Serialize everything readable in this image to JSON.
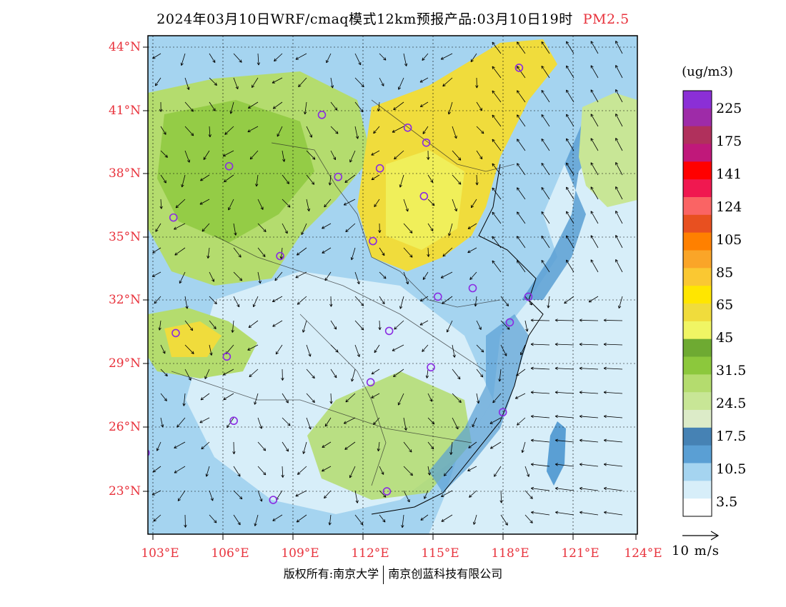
{
  "title": {
    "main": "2024年03月10日WRF/cmaq模式12km预报产品:03月10日19时",
    "pollutant": "PM2.5"
  },
  "axes": {
    "latitude_labels": [
      "44°N",
      "41°N",
      "38°N",
      "35°N",
      "32°N",
      "29°N",
      "26°N",
      "23°N"
    ],
    "latitude_values": [
      44,
      41,
      38,
      35,
      32,
      29,
      26,
      23
    ],
    "longitude_labels": [
      "103°E",
      "106°E",
      "109°E",
      "112°E",
      "115°E",
      "118°E",
      "121°E",
      "124°E"
    ],
    "longitude_values": [
      103,
      106,
      109,
      112,
      115,
      118,
      121,
      124
    ],
    "extent": {
      "lon_min": 102.9,
      "lon_max": 124.0,
      "lat_min": 21.2,
      "lat_max": 44.5
    }
  },
  "legend": {
    "unit": "(ug/m3)",
    "labels": [
      "225",
      "175",
      "141",
      "124",
      "105",
      "85",
      "65",
      "45",
      "31.5",
      "24.5",
      "17.5",
      "10.5",
      "3.5"
    ],
    "colors_top_to_bottom": [
      "#8b2fd6",
      "#9e2ba8",
      "#b0305c",
      "#c0187a",
      "#ff0000",
      "#f01850",
      "#fa6464",
      "#e85020",
      "#ff8000",
      "#faa528",
      "#fac832",
      "#ffe600",
      "#f0dc3c",
      "#f0f564",
      "#6eaa32",
      "#8cc83c",
      "#b4dc6e",
      "#c8e696",
      "#dcebc8",
      "#4682b4",
      "#5a9fd4",
      "#a5d4f0",
      "#d7eef9",
      "#ffffff"
    ]
  },
  "wind_scale": {
    "label": "10 m/s"
  },
  "footer": {
    "left": "版权所有:南京大学",
    "right": "南京创蓝科技有限公司"
  },
  "stations": [
    {
      "lon": 118.9,
      "lat": 43.0
    },
    {
      "lon": 110.4,
      "lat": 40.8
    },
    {
      "lon": 114.1,
      "lat": 40.2
    },
    {
      "lon": 114.9,
      "lat": 39.5
    },
    {
      "lon": 112.9,
      "lat": 38.3
    },
    {
      "lon": 111.1,
      "lat": 37.9
    },
    {
      "lon": 106.4,
      "lat": 38.4
    },
    {
      "lon": 114.8,
      "lat": 37.0
    },
    {
      "lon": 104.0,
      "lat": 36.0
    },
    {
      "lon": 112.6,
      "lat": 34.9
    },
    {
      "lon": 108.6,
      "lat": 34.2
    },
    {
      "lon": 115.4,
      "lat": 32.3
    },
    {
      "lon": 116.9,
      "lat": 32.7
    },
    {
      "lon": 119.3,
      "lat": 32.3
    },
    {
      "lon": 118.5,
      "lat": 31.1
    },
    {
      "lon": 113.3,
      "lat": 30.7
    },
    {
      "lon": 104.1,
      "lat": 30.6
    },
    {
      "lon": 106.3,
      "lat": 29.5
    },
    {
      "lon": 115.1,
      "lat": 29.0
    },
    {
      "lon": 112.5,
      "lat": 28.3
    },
    {
      "lon": 118.2,
      "lat": 26.9
    },
    {
      "lon": 106.6,
      "lat": 26.5
    },
    {
      "lon": 102.8,
      "lat": 25.0
    },
    {
      "lon": 108.3,
      "lat": 22.8
    },
    {
      "lon": 113.2,
      "lat": 23.2
    }
  ]
}
